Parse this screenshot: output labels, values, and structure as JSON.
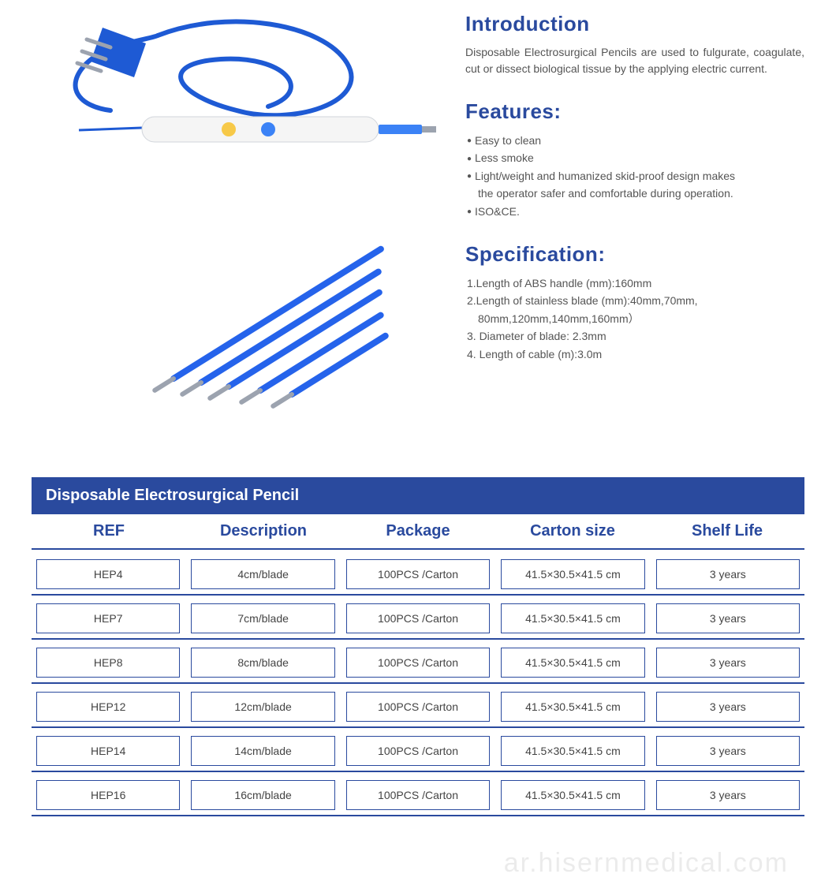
{
  "colors": {
    "heading": "#2a4a9e",
    "body_text": "#555555",
    "cell_text": "#444444",
    "table_header_bg": "#2a4a9e",
    "table_header_text": "#ffffff",
    "cell_border": "#2a4a9e",
    "row_divider": "#2a4a9e",
    "background": "#ffffff",
    "product_cable": "#1e5ad4",
    "product_body": "#f5f5f5",
    "product_button1": "#f7c948",
    "product_button2": "#3b82f6",
    "blade_color": "#2563eb",
    "tip_color": "#9ca3af"
  },
  "typography": {
    "heading_fontsize": 26,
    "body_fontsize": 14,
    "table_title_fontsize": 20,
    "column_header_fontsize": 20,
    "cell_fontsize": 14,
    "watermark_fontsize": 34
  },
  "introduction": {
    "heading": "Introduction",
    "text": "Disposable Electrosurgical Pencils are used to fulgurate, coagulate, cut or dissect biological tissue by the applying electric current."
  },
  "features": {
    "heading": "Features:",
    "items": [
      {
        "text": "Easy to clean",
        "indented": false,
        "bullet": true
      },
      {
        "text": "Less smoke",
        "indented": false,
        "bullet": true
      },
      {
        "text": "Light/weight and humanized skid-proof design makes",
        "indented": false,
        "bullet": true
      },
      {
        "text": "the operator safer and comfortable during operation.",
        "indented": true,
        "bullet": false
      },
      {
        "text": "ISO&CE.",
        "indented": false,
        "bullet": true
      }
    ]
  },
  "specification": {
    "heading": "Specification:",
    "items": [
      {
        "text": "1.Length of ABS handle (mm):160mm",
        "indented": false
      },
      {
        "text": "2.Length of stainless blade (mm):40mm,70mm,",
        "indented": false
      },
      {
        "text": "80mm,120mm,140mm,160mm）",
        "indented": true
      },
      {
        "text": "3. Diameter of blade: 2.3mm",
        "indented": false
      },
      {
        "text": "4. Length of cable (m):3.0m",
        "indented": false
      }
    ]
  },
  "table": {
    "title": "Disposable Electrosurgical Pencil",
    "columns": [
      "REF",
      "Description",
      "Package",
      "Carton  size",
      "Shelf Life"
    ],
    "rows": [
      [
        "HEP4",
        "4cm/blade",
        "100PCS /Carton",
        "41.5×30.5×41.5 cm",
        "3 years"
      ],
      [
        "HEP7",
        "7cm/blade",
        "100PCS /Carton",
        "41.5×30.5×41.5 cm",
        "3 years"
      ],
      [
        "HEP8",
        "8cm/blade",
        "100PCS /Carton",
        "41.5×30.5×41.5 cm",
        "3 years"
      ],
      [
        "HEP12",
        "12cm/blade",
        "100PCS /Carton",
        "41.5×30.5×41.5 cm",
        "3 years"
      ],
      [
        "HEP14",
        "14cm/blade",
        "100PCS /Carton",
        "41.5×30.5×41.5 cm",
        "3 years"
      ],
      [
        "HEP16",
        "16cm/blade",
        "100PCS /Carton",
        "41.5×30.5×41.5 cm",
        "3 years"
      ]
    ]
  },
  "watermark": "ar.hisernmedical.com",
  "product_image": {
    "type": "illustration",
    "description": "Electrosurgical pencil with coiled blue cable and plug, plus five blue blades of decreasing length",
    "blade_lengths_relative": [
      1.0,
      0.85,
      0.72,
      0.58,
      0.45
    ]
  }
}
